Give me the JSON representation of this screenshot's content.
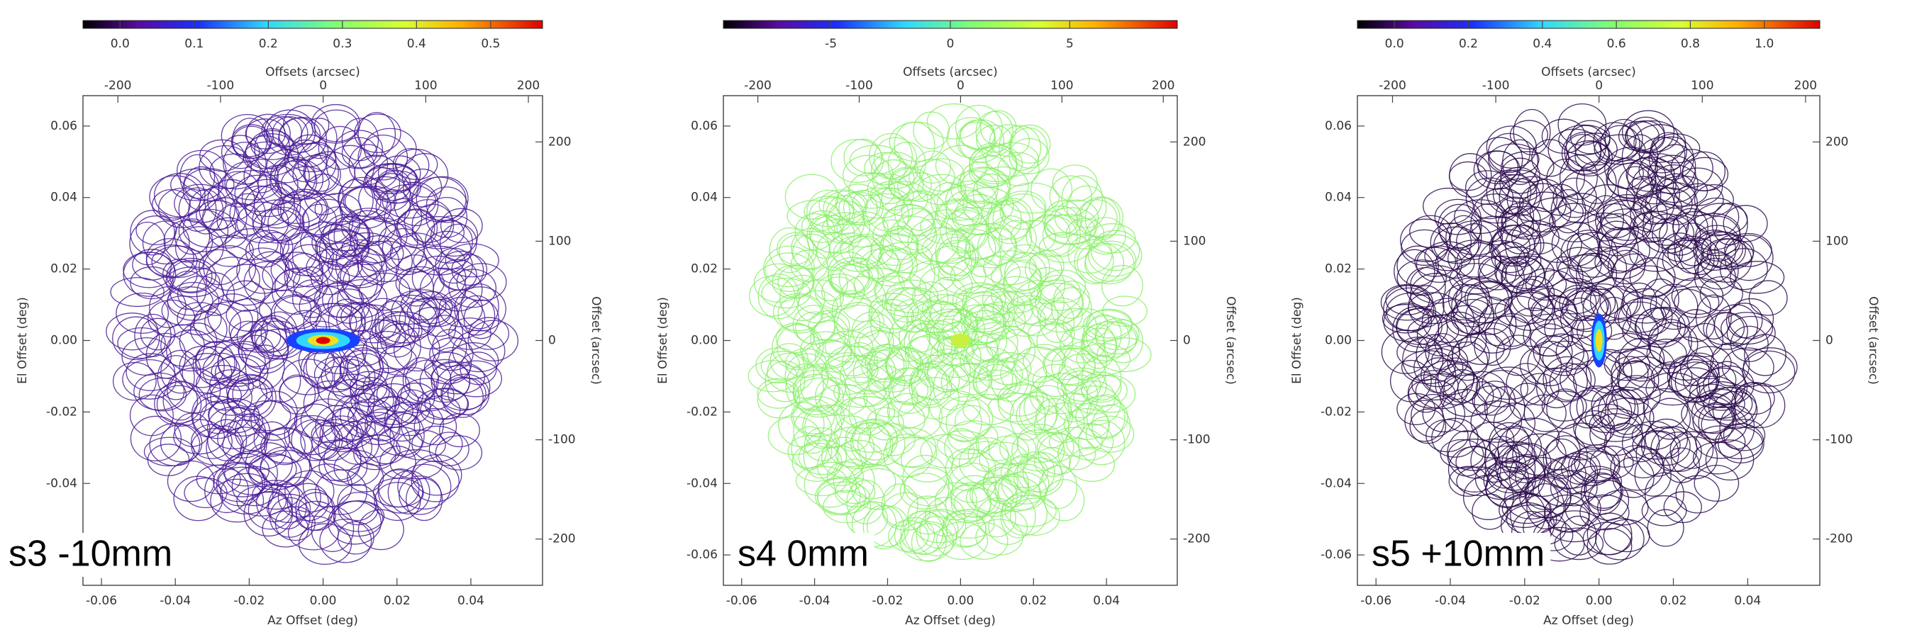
{
  "chart_data": [
    {
      "type": "heatmap",
      "title": "s3 -10mm",
      "color": "#4a1c96",
      "xlabel": "Az Offset (deg)",
      "ylabel": "El Offset (deg)",
      "x2label": "Offsets (arcsec)",
      "y2label": "Offset (arcsec)",
      "xlim": [
        -0.065,
        0.0594
      ],
      "ylim": [
        -0.0685,
        0.0685
      ],
      "x2lim": [
        -234,
        213.8
      ],
      "y2lim": [
        -246.6,
        246.6
      ],
      "xticks": [
        -0.06,
        -0.04,
        -0.02,
        {
          "value": 0,
          "label": "0.00"
        },
        0.02,
        0.04
      ],
      "yticks": [
        -0.06,
        -0.04,
        -0.02,
        {
          "value": 0,
          "label": "0.00"
        },
        0.02,
        0.04,
        0.06
      ],
      "x2ticks": [
        -200,
        -100,
        0,
        100,
        200
      ],
      "y2ticks": [
        -200,
        -100,
        0,
        100,
        200
      ],
      "clim": [
        -0.05,
        0.57
      ],
      "cticks": [
        {
          "value": 0,
          "label": "0.0"
        },
        0.1,
        0.2,
        0.3,
        0.4,
        0.5
      ]
    },
    {
      "type": "heatmap",
      "title": "s4 0mm",
      "color": "#8cf06c",
      "xlabel": "Az Offset (deg)",
      "ylabel": "El Offset (deg)",
      "x2label": "Offsets (arcsec)",
      "y2label": "Offset (arcsec)",
      "xlim": [
        -0.065,
        0.0594
      ],
      "ylim": [
        -0.0685,
        0.0685
      ],
      "x2lim": [
        -234,
        213.8
      ],
      "y2lim": [
        -246.6,
        246.6
      ],
      "xticks": [
        -0.06,
        -0.04,
        -0.02,
        {
          "value": 0,
          "label": "0.00"
        },
        0.02,
        0.04
      ],
      "yticks": [
        -0.06,
        -0.04,
        -0.02,
        {
          "value": 0,
          "label": "0.00"
        },
        0.02,
        0.04,
        0.06
      ],
      "x2ticks": [
        -200,
        -100,
        0,
        100,
        200
      ],
      "y2ticks": [
        -200,
        -100,
        0,
        100,
        200
      ],
      "clim": [
        -9.5,
        9.5
      ],
      "cticks": [
        -5,
        0,
        5
      ]
    },
    {
      "type": "heatmap",
      "title": "s5 +10mm",
      "color": "#2c0c4e",
      "xlabel": "Az Offset (deg)",
      "ylabel": "El Offset (deg)",
      "x2label": "Offsets (arcsec)",
      "y2label": "Offset (arcsec)",
      "xlim": [
        -0.065,
        0.0594
      ],
      "ylim": [
        -0.0685,
        0.0685
      ],
      "x2lim": [
        -234,
        213.8
      ],
      "y2lim": [
        -246.6,
        246.6
      ],
      "xticks": [
        -0.06,
        -0.04,
        -0.02,
        {
          "value": 0,
          "label": "0.00"
        },
        0.02,
        0.04
      ],
      "yticks": [
        -0.06,
        -0.04,
        -0.02,
        {
          "value": 0,
          "label": "0.00"
        },
        0.02,
        0.04,
        0.06
      ],
      "x2ticks": [
        -200,
        -100,
        0,
        100,
        200
      ],
      "y2ticks": [
        -200,
        -100,
        0,
        100,
        200
      ],
      "clim": [
        -0.1,
        1.15
      ],
      "cticks": [
        {
          "value": 0,
          "label": "0.0"
        },
        0.2,
        0.4,
        0.6,
        0.8,
        {
          "value": 1,
          "label": "1.0"
        }
      ]
    }
  ]
}
